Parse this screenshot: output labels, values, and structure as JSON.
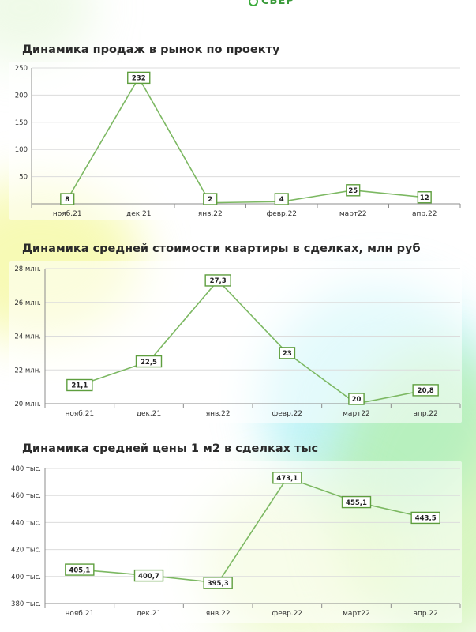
{
  "logo": {
    "text": "СБЕР",
    "icon": "sber-logo-icon"
  },
  "colors": {
    "line": "#7cb862",
    "label_border": "#5e9e3e",
    "grid": "#dcdcdc",
    "axis": "#8c8c8c"
  },
  "chart_data": [
    {
      "type": "line",
      "title": "Динамика продаж в рынок по проекту",
      "categories": [
        "нояб.21",
        "дек.21",
        "янв.22",
        "февр.22",
        "март22",
        "апр.22"
      ],
      "values": [
        8,
        232,
        2,
        4,
        25,
        12
      ],
      "data_labels": [
        "8",
        "232",
        "2",
        "4",
        "25",
        "12"
      ],
      "ylim": [
        0,
        250
      ],
      "yticks": [
        0,
        50,
        100,
        150,
        200,
        250
      ],
      "ytick_labels": [
        "",
        "50",
        "100",
        "150",
        "200",
        "250"
      ],
      "grid": true
    },
    {
      "type": "line",
      "title": "Динамика средней стоимости квартиры в сделках, млн руб",
      "categories": [
        "нояб.21",
        "дек.21",
        "янв.22",
        "февр.22",
        "март22",
        "апр.22"
      ],
      "values": [
        21.1,
        22.5,
        27.3,
        23,
        20,
        20.8
      ],
      "data_labels": [
        "21,1",
        "22,5",
        "27,3",
        "23",
        "20",
        "20,8"
      ],
      "ylim": [
        20,
        28
      ],
      "yticks": [
        20,
        22,
        24,
        26,
        28
      ],
      "ytick_labels": [
        "20 млн.",
        "22 млн.",
        "24 млн.",
        "26 млн.",
        "28 млн."
      ],
      "grid": true
    },
    {
      "type": "line",
      "title": "Динамика средней цены 1 м2 в сделках тыс",
      "categories": [
        "нояб.21",
        "дек.21",
        "янв.22",
        "февр.22",
        "март22",
        "апр.22"
      ],
      "values": [
        405.1,
        400.7,
        395.3,
        473.1,
        455.1,
        443.5
      ],
      "data_labels": [
        "405,1",
        "400,7",
        "395,3",
        "473,1",
        "455,1",
        "443,5"
      ],
      "ylim": [
        380,
        480
      ],
      "yticks": [
        380,
        400,
        420,
        440,
        460,
        480
      ],
      "ytick_labels": [
        "380 тыс.",
        "400 тыс.",
        "420 тыс.",
        "440 тыс.",
        "460 тыс.",
        "480 тыс."
      ],
      "grid": true
    }
  ]
}
